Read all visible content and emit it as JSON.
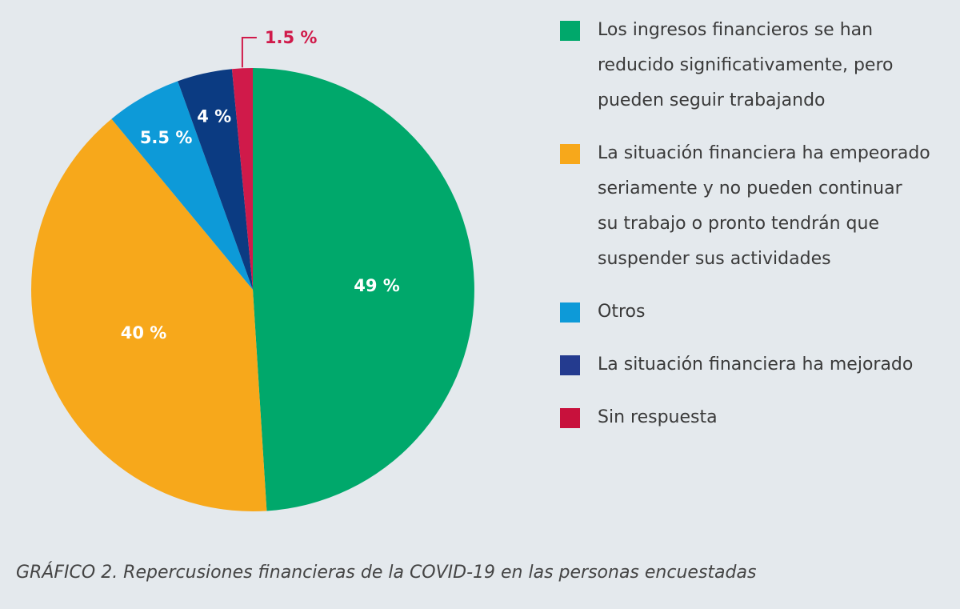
{
  "chart_data": {
    "type": "pie",
    "title": "",
    "slices": [
      {
        "label": "Los ingresos financieros se han reducido significativamente, pero pueden seguir trabajando",
        "value": 49,
        "value_label": "49 %",
        "color": "#00a86b"
      },
      {
        "label": "La situación financiera ha empeorado seriamente y no pueden continuar su trabajo o pronto tendrán que suspender sus actividades",
        "value": 40,
        "value_label": "40 %",
        "color": "#f7a81b"
      },
      {
        "label": "Otros",
        "value": 5.5,
        "value_label": "5.5 %",
        "color": "#0d9ad8"
      },
      {
        "label": "La situación financiera ha mejorado",
        "value": 4,
        "value_label": "4 %",
        "color": "#0b3b82"
      },
      {
        "label": "Sin respuesta",
        "value": 1.5,
        "value_label": "1.5 %",
        "color": "#d01a4a"
      }
    ],
    "legend": {
      "position": "right",
      "items": [
        {
          "lines": [
            "Los ingresos financieros se han",
            "reducido significativamente, pero",
            "pueden seguir trabajando"
          ],
          "color": "#00a86b"
        },
        {
          "lines": [
            "La situación financiera ha empeorado",
            "seriamente y no pueden continuar",
            "su trabajo o pronto tendrán que",
            "suspender sus actividades"
          ],
          "color": "#f7a81b"
        },
        {
          "lines": [
            "Otros"
          ],
          "color": "#0d9ad8"
        },
        {
          "lines": [
            "La situación financiera ha mejorado"
          ],
          "color": "#243b8f"
        },
        {
          "lines": [
            "Sin respuesta"
          ],
          "color": "#c8113c"
        }
      ]
    },
    "caption": "GRÁFICO 2. Repercusiones financieras de la COVID-19 en las personas encuestadas"
  }
}
